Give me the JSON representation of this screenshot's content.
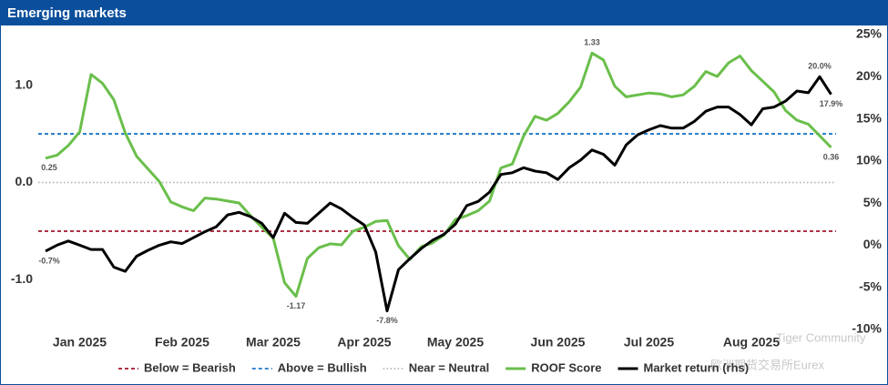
{
  "chart_data": {
    "type": "line",
    "title": "Emerging markets",
    "categories": [
      null,
      null,
      null,
      "Jan 2025",
      null,
      null,
      null,
      null,
      null,
      null,
      null,
      null,
      "Feb 2025",
      null,
      null,
      null,
      null,
      null,
      null,
      null,
      "Mar 2025",
      null,
      null,
      null,
      null,
      null,
      null,
      null,
      "Apr 2025",
      null,
      null,
      null,
      null,
      null,
      null,
      null,
      "May 2025",
      null,
      null,
      null,
      null,
      null,
      null,
      null,
      null,
      "Jun 2025",
      null,
      null,
      null,
      null,
      null,
      null,
      null,
      "Jul 2025",
      null,
      null,
      null,
      null,
      null,
      null,
      null,
      null,
      "Aug 2025",
      null,
      null,
      null,
      null,
      null,
      null,
      null
    ],
    "series": [
      {
        "name": "ROOF Score",
        "color": "#6abf4b",
        "axis": "y",
        "values": [
          0.25,
          0.28,
          0.38,
          0.52,
          1.11,
          1.02,
          0.85,
          0.51,
          0.27,
          0.14,
          0.01,
          -0.2,
          -0.25,
          -0.29,
          -0.16,
          -0.17,
          -0.19,
          -0.21,
          -0.34,
          -0.46,
          -0.57,
          -1.03,
          -1.17,
          -0.78,
          -0.67,
          -0.63,
          -0.64,
          -0.5,
          -0.46,
          -0.4,
          -0.39,
          -0.65,
          -0.79,
          -0.66,
          -0.62,
          -0.54,
          -0.38,
          -0.34,
          -0.29,
          -0.19,
          0.15,
          0.19,
          0.48,
          0.68,
          0.64,
          0.71,
          0.83,
          0.98,
          1.33,
          1.26,
          0.99,
          0.88,
          0.9,
          0.92,
          0.91,
          0.88,
          0.9,
          0.99,
          1.14,
          1.09,
          1.23,
          1.3,
          1.15,
          1.04,
          0.93,
          0.74,
          0.64,
          0.6,
          0.48,
          0.36
        ],
        "value_labels": [
          "0.25",
          null,
          null,
          null,
          null,
          null,
          null,
          null,
          null,
          null,
          null,
          null,
          null,
          null,
          null,
          null,
          null,
          null,
          null,
          null,
          null,
          null,
          "-1.17",
          null,
          null,
          null,
          null,
          null,
          null,
          null,
          null,
          null,
          null,
          null,
          null,
          null,
          null,
          null,
          null,
          null,
          null,
          null,
          null,
          null,
          null,
          null,
          null,
          null,
          "1.33",
          null,
          null,
          null,
          null,
          null,
          null,
          null,
          null,
          null,
          null,
          null,
          null,
          null,
          null,
          null,
          null,
          null,
          null,
          null,
          null,
          "0.36"
        ]
      },
      {
        "name": "Market return (rhs)",
        "color": "#000000",
        "axis": "y2",
        "values": [
          -0.7,
          0.0,
          0.5,
          0.0,
          -0.5,
          -0.5,
          -2.6,
          -3.1,
          -1.3,
          -0.6,
          0.0,
          0.4,
          0.2,
          0.9,
          1.6,
          2.2,
          3.6,
          3.9,
          3.4,
          2.6,
          0.9,
          3.8,
          2.7,
          2.6,
          3.8,
          5.0,
          4.3,
          3.3,
          2.4,
          -0.8,
          -7.8,
          -2.9,
          -1.6,
          -0.4,
          0.6,
          1.3,
          2.5,
          4.7,
          5.2,
          6.3,
          8.4,
          8.6,
          9.2,
          8.8,
          8.6,
          7.8,
          9.2,
          10.1,
          11.3,
          10.8,
          9.5,
          11.9,
          13.1,
          13.7,
          14.2,
          13.9,
          13.9,
          14.7,
          15.9,
          16.4,
          16.4,
          15.5,
          14.3,
          16.2,
          16.4,
          17.1,
          18.3,
          18.1,
          20.0,
          17.9
        ],
        "value_labels": [
          "-0.7%",
          null,
          null,
          null,
          null,
          null,
          null,
          null,
          null,
          null,
          null,
          null,
          null,
          null,
          null,
          null,
          null,
          null,
          null,
          null,
          null,
          null,
          null,
          null,
          null,
          null,
          null,
          null,
          null,
          null,
          "-7.8%",
          null,
          null,
          null,
          null,
          null,
          null,
          null,
          null,
          null,
          null,
          null,
          null,
          null,
          null,
          null,
          null,
          null,
          null,
          null,
          null,
          null,
          null,
          null,
          null,
          null,
          null,
          null,
          null,
          null,
          null,
          null,
          null,
          null,
          null,
          null,
          null,
          null,
          "20.0%",
          "17.9%"
        ]
      }
    ],
    "reference_lines": [
      {
        "name": "Below = Bearish",
        "value": -0.5,
        "color": "#a3162b",
        "style": "dashed"
      },
      {
        "name": "Above = Bullish",
        "value": 0.5,
        "color": "#1f78c8",
        "style": "dashed"
      },
      {
        "name": "Near = Neutral",
        "value": 0.0,
        "color": "#b5b5b5",
        "style": "dotted"
      }
    ],
    "ylim": [
      -1.51,
      1.52
    ],
    "yticks": [
      {
        "value": 1,
        "label": "1.0"
      },
      {
        "value": 0,
        "label": "0.0"
      },
      {
        "value": -1,
        "label": "-1.0"
      }
    ],
    "y2lim": [
      -10,
      25
    ],
    "y2ticks": [
      {
        "value": 25,
        "label": "25%"
      },
      {
        "value": 20,
        "label": "20%"
      },
      {
        "value": 15,
        "label": "15%"
      },
      {
        "value": 10,
        "label": "10%"
      },
      {
        "value": 5,
        "label": "5%"
      },
      {
        "value": 0,
        "label": "0%"
      },
      {
        "value": -5,
        "label": "-5%"
      },
      {
        "value": -10,
        "label": "-10%"
      }
    ],
    "legend": "bottom",
    "watermark": [
      "Tiger Community",
      "欧洲期货交易所Eurex"
    ]
  }
}
